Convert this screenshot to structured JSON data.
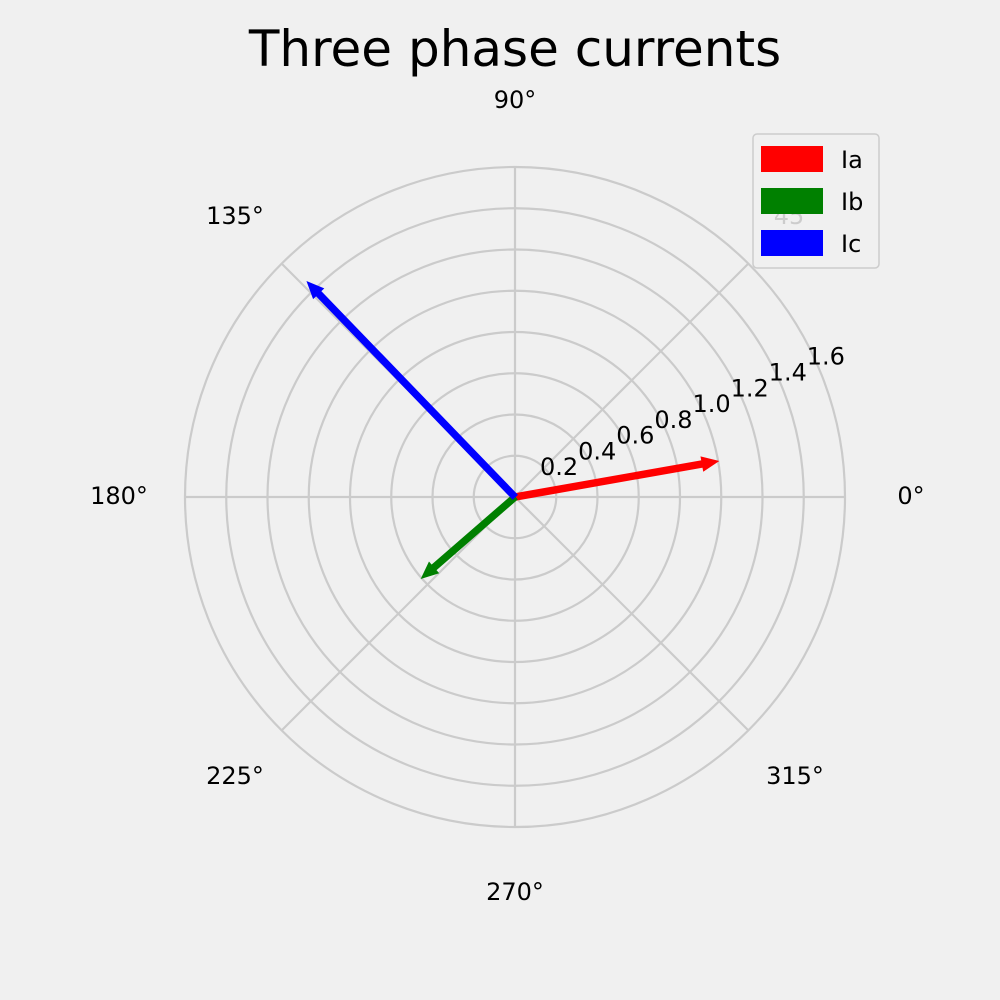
{
  "chart_data": {
    "type": "polar",
    "title": "Three phase currents",
    "theta_ticks": [
      "0°",
      "45°",
      "90°",
      "135°",
      "180°",
      "225°",
      "270°",
      "315°"
    ],
    "theta_tick_values_deg": [
      0,
      45,
      90,
      135,
      180,
      225,
      270,
      315
    ],
    "r_ticks": [
      "0.2",
      "0.4",
      "0.6",
      "0.8",
      "1.0",
      "1.2",
      "1.4",
      "1.6"
    ],
    "r_tick_values": [
      0.2,
      0.4,
      0.6,
      0.8,
      1.0,
      1.2,
      1.4,
      1.6
    ],
    "rlim": [
      0,
      1.6
    ],
    "grid": true,
    "legend_position": "top-right",
    "series": [
      {
        "name": "Ia",
        "angle_deg": 10,
        "magnitude": 1.0,
        "color": "#ff0000"
      },
      {
        "name": "Ib",
        "angle_deg": 221,
        "magnitude": 0.6,
        "color": "#008000"
      },
      {
        "name": "Ic",
        "angle_deg": 134,
        "magnitude": 1.45,
        "color": "#0000ff"
      }
    ]
  },
  "colors": {
    "background": "#f0f0f0",
    "grid": "#cbcbcb"
  }
}
